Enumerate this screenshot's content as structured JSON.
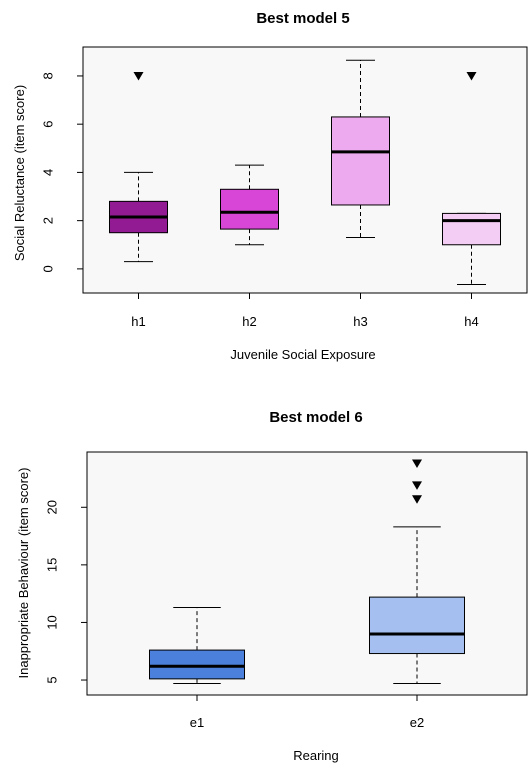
{
  "chart_data": [
    {
      "type": "box",
      "title": "Best model 5",
      "xlabel": "Juvenile Social Exposure",
      "ylabel": "Social Reluctance (item score)",
      "ylim": [
        -1,
        9.2
      ],
      "yticks": [
        "0",
        "2",
        "4",
        "6",
        "8"
      ],
      "categories": [
        "h1",
        "h2",
        "h3",
        "h4"
      ],
      "background": "#f9f8f8",
      "boxes": [
        {
          "category": "h1",
          "whisker_low": 0.3,
          "q1": 1.5,
          "median": 2.15,
          "q3": 2.8,
          "whisker_high": 4.0,
          "outliers": [
            8.0
          ],
          "color": "#921a92"
        },
        {
          "category": "h2",
          "whisker_low": 1.0,
          "q1": 1.65,
          "median": 2.35,
          "q3": 3.3,
          "whisker_high": 4.3,
          "outliers": [],
          "color": "#d846d8"
        },
        {
          "category": "h3",
          "whisker_low": 1.3,
          "q1": 2.65,
          "median": 4.85,
          "q3": 6.3,
          "whisker_high": 8.65,
          "outliers": [],
          "color": "#eeaaee"
        },
        {
          "category": "h4",
          "whisker_low": -0.65,
          "q1": 1.0,
          "median": 2.0,
          "q3": 2.3,
          "whisker_high": 2.3,
          "outliers": [
            8.0
          ],
          "color": "#f4cdf4"
        }
      ]
    },
    {
      "type": "box",
      "title": "Best model 6",
      "xlabel": "Rearing",
      "ylabel": "Inappropriate Behaviour (item score)",
      "ylim": [
        3.7,
        24.8
      ],
      "yticks": [
        "5",
        "10",
        "15",
        "20"
      ],
      "categories": [
        "e1",
        "e2"
      ],
      "background": "#f9f8f8",
      "boxes": [
        {
          "category": "e1",
          "whisker_low": 4.7,
          "q1": 5.1,
          "median": 6.2,
          "q3": 7.6,
          "whisker_high": 11.3,
          "outliers": [],
          "color": "#4b80dc"
        },
        {
          "category": "e2",
          "whisker_low": 4.7,
          "q1": 7.3,
          "median": 9.0,
          "q3": 12.2,
          "whisker_high": 18.3,
          "outliers": [
            20.7,
            21.9,
            23.8
          ],
          "color": "#a5c0f0"
        }
      ]
    }
  ]
}
